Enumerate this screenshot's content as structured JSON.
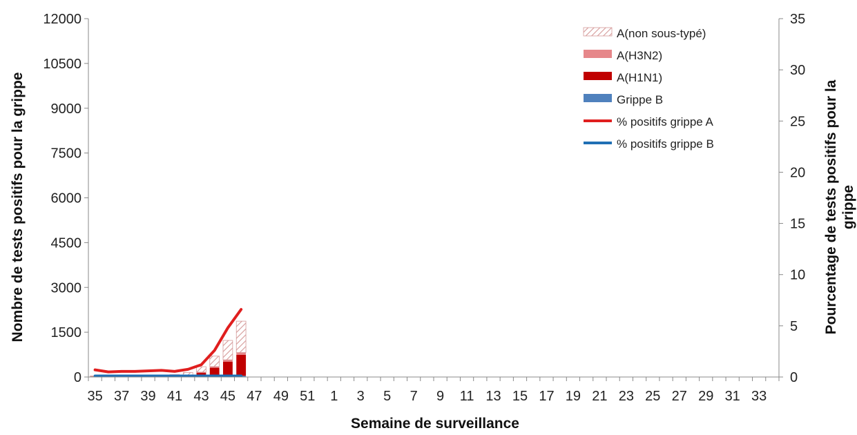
{
  "chart_data": {
    "type": "bar",
    "title": "",
    "xlabel": "Semaine de surveillance",
    "ylabel_left": "Nombre de tests positifs pour la grippe",
    "ylabel_right": "Pourcentage de tests positifs pour la grippe",
    "ylim_left": [
      0,
      12000
    ],
    "ylim_right": [
      0,
      35
    ],
    "yticks_left": [
      "0",
      "1500",
      "3000",
      "4500",
      "6000",
      "7500",
      "9000",
      "10500",
      "12000"
    ],
    "yticks_right": [
      "0",
      "5",
      "10",
      "15",
      "20",
      "25",
      "30",
      "35"
    ],
    "categories": [
      "35",
      "36",
      "37",
      "38",
      "39",
      "40",
      "41",
      "42",
      "43",
      "44",
      "45",
      "46",
      "47",
      "48",
      "49",
      "50",
      "51",
      "52",
      "1",
      "2",
      "3",
      "4",
      "5",
      "6",
      "7",
      "8",
      "9",
      "10",
      "11",
      "12",
      "13",
      "14",
      "15",
      "16",
      "17",
      "18",
      "19",
      "20",
      "21",
      "22",
      "23",
      "24",
      "25",
      "26",
      "27",
      "28",
      "29",
      "30",
      "31",
      "32",
      "33",
      "34"
    ],
    "xtick_labels": [
      "35",
      "37",
      "39",
      "41",
      "43",
      "45",
      "47",
      "49",
      "51",
      "1",
      "3",
      "5",
      "7",
      "9",
      "11",
      "13",
      "15",
      "17",
      "19",
      "21",
      "23",
      "25",
      "27",
      "29",
      "31",
      "33"
    ],
    "legend_position": "top-right",
    "grid": false,
    "bar_series": [
      {
        "name": "Grippe B",
        "color": "#4f81bd",
        "values": [
          10,
          10,
          10,
          10,
          10,
          10,
          15,
          20,
          25,
          30,
          35,
          40
        ]
      },
      {
        "name": "A(H1N1)",
        "color": "#c00000",
        "values": [
          5,
          5,
          5,
          5,
          10,
          10,
          20,
          40,
          120,
          280,
          480,
          700
        ]
      },
      {
        "name": "A(H3N2)",
        "color": "#e6878a",
        "values": [
          2,
          2,
          2,
          2,
          3,
          3,
          5,
          10,
          20,
          40,
          60,
          80
        ]
      },
      {
        "name": "A(non sous-typé)",
        "color": "#e6b8b7",
        "pattern": "hatch",
        "values": [
          20,
          20,
          20,
          20,
          30,
          30,
          40,
          80,
          180,
          350,
          650,
          1050
        ]
      }
    ],
    "line_series": [
      {
        "name": "% positifs grippe A",
        "color": "#e01e1e",
        "values": [
          0.7,
          0.5,
          0.55,
          0.55,
          0.6,
          0.65,
          0.55,
          0.75,
          1.2,
          2.6,
          4.8,
          6.6
        ]
      },
      {
        "name": "% positifs grippe B",
        "color": "#1f6fb4",
        "values": [
          0.1,
          0.1,
          0.1,
          0.1,
          0.1,
          0.1,
          0.1,
          0.1,
          0.1,
          0.1,
          0.1,
          0.1
        ]
      }
    ]
  }
}
